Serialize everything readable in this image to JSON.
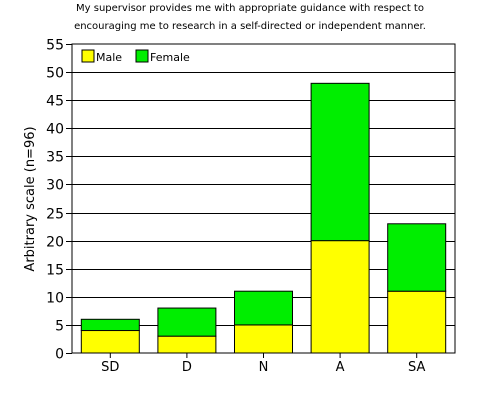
{
  "chart_data": {
    "type": "bar",
    "stacked": true,
    "title_lines": [
      "My supervisor provides me with appropriate guidance with respect to",
      "encouraging me to research in a self-directed or independent manner."
    ],
    "xlabel": "",
    "ylabel": "Arbitrary scale (n=96)",
    "categories": [
      "SD",
      "D",
      "N",
      "A",
      "SA"
    ],
    "series": [
      {
        "name": "Male",
        "color": "#ffff00",
        "values": [
          4,
          3,
          5,
          20,
          11
        ]
      },
      {
        "name": "Female",
        "color": "#00ee00",
        "values": [
          2,
          5,
          6,
          28,
          12
        ]
      }
    ],
    "ylim": [
      0,
      55
    ],
    "yticks": [
      0,
      5,
      10,
      15,
      20,
      25,
      30,
      35,
      40,
      45,
      50,
      55
    ],
    "grid": true,
    "legend_position": "top-left"
  }
}
